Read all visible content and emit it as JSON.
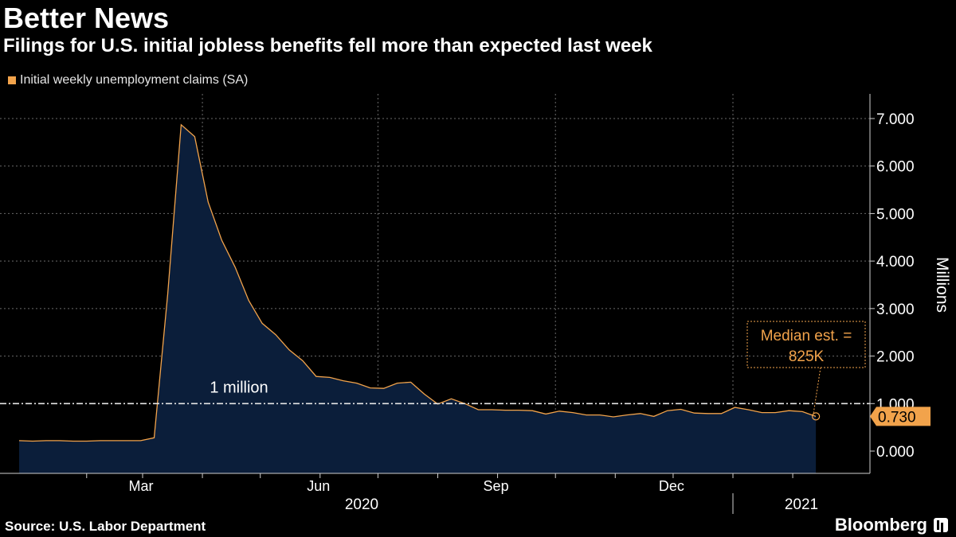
{
  "title": "Better News",
  "subtitle": "Filings for U.S. initial jobless benefits fell more than expected last week",
  "legend_label": "Initial weekly unemployment claims (SA)",
  "source": "Source: U.S. Labor Department",
  "brand": "Bloomberg",
  "colors": {
    "series": "#f2a34b",
    "area": "#0b1e3a",
    "grid": "#6a6a6a",
    "reference": "#e6e6e6",
    "annotation": "#f2a34b"
  },
  "chart_data": {
    "type": "area",
    "title": "Better News",
    "subtitle": "Filings for U.S. initial jobless benefits fell more than expected last week",
    "ylabel": "Millions",
    "ylim": [
      0,
      7
    ],
    "yticks": [
      "0.000",
      "1.000",
      "2.000",
      "3.000",
      "4.000",
      "5.000",
      "6.000",
      "7.000"
    ],
    "xticks": [
      "Mar",
      "Jun",
      "Sep",
      "Dec"
    ],
    "year_labels": [
      "2020",
      "2021"
    ],
    "grid": true,
    "legend_position": "top-left",
    "series": [
      {
        "name": "Initial weekly unemployment claims (SA)",
        "x": [
          "2019-12-28",
          "2020-01-04",
          "2020-01-11",
          "2020-01-18",
          "2020-01-25",
          "2020-02-01",
          "2020-02-08",
          "2020-02-15",
          "2020-02-22",
          "2020-02-29",
          "2020-03-07",
          "2020-03-14",
          "2020-03-21",
          "2020-03-28",
          "2020-04-04",
          "2020-04-11",
          "2020-04-18",
          "2020-04-25",
          "2020-05-02",
          "2020-05-09",
          "2020-05-16",
          "2020-05-23",
          "2020-05-30",
          "2020-06-06",
          "2020-06-13",
          "2020-06-20",
          "2020-06-27",
          "2020-07-04",
          "2020-07-11",
          "2020-07-18",
          "2020-07-25",
          "2020-08-01",
          "2020-08-08",
          "2020-08-15",
          "2020-08-22",
          "2020-08-29",
          "2020-09-05",
          "2020-09-12",
          "2020-09-19",
          "2020-09-26",
          "2020-10-03",
          "2020-10-10",
          "2020-10-17",
          "2020-10-24",
          "2020-10-31",
          "2020-11-07",
          "2020-11-14",
          "2020-11-21",
          "2020-11-28",
          "2020-12-05",
          "2020-12-12",
          "2020-12-19",
          "2020-12-26",
          "2021-01-02",
          "2021-01-09",
          "2021-01-16",
          "2021-01-23",
          "2021-01-30",
          "2021-02-06",
          "2021-02-13"
        ],
        "values": [
          0.22,
          0.21,
          0.22,
          0.22,
          0.21,
          0.21,
          0.22,
          0.22,
          0.22,
          0.22,
          0.28,
          3.3,
          6.87,
          6.62,
          5.24,
          4.44,
          3.87,
          3.17,
          2.69,
          2.45,
          2.13,
          1.9,
          1.57,
          1.55,
          1.48,
          1.43,
          1.33,
          1.32,
          1.43,
          1.45,
          1.2,
          0.99,
          1.1,
          1.0,
          0.87,
          0.87,
          0.86,
          0.86,
          0.85,
          0.78,
          0.84,
          0.81,
          0.76,
          0.76,
          0.72,
          0.76,
          0.79,
          0.73,
          0.85,
          0.88,
          0.8,
          0.79,
          0.79,
          0.92,
          0.87,
          0.81,
          0.81,
          0.85,
          0.83,
          0.73
        ]
      }
    ],
    "reference_line": {
      "value": 1.0,
      "label": "1 million"
    },
    "last_value_label": "0.730",
    "annotation": {
      "text_line1": "Median est. =",
      "text_line2": "825K",
      "value": 0.825
    }
  }
}
